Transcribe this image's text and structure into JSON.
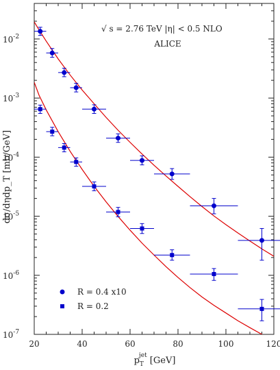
{
  "chart_data": {
    "type": "scatter",
    "title": "",
    "xlabel": "p_T^jet [GeV]",
    "xlabel_parts": {
      "p": "p",
      "sub": "T",
      "sup": "jet",
      "unit": " [GeV]"
    },
    "ylabel": "dσ/dηdp_T [mb/GeV]",
    "xlim": [
      20,
      120
    ],
    "ylim": [
      1e-07,
      0.04
    ],
    "yscale": "log",
    "x_ticks": [
      "20",
      "40",
      "60",
      "80",
      "100",
      "120"
    ],
    "y_ticks": [
      {
        "base": "10",
        "exp": "-7"
      },
      {
        "base": "10",
        "exp": "-6"
      },
      {
        "base": "10",
        "exp": "-5"
      },
      {
        "base": "10",
        "exp": "-4"
      },
      {
        "base": "10",
        "exp": "-3"
      },
      {
        "base": "10",
        "exp": "-2"
      }
    ],
    "annotations": [
      {
        "text": "√ s = 2.76 TeV |η| < 0.5  NLO"
      },
      {
        "text": "ALICE"
      }
    ],
    "legend_position": "bottom-left",
    "series": [
      {
        "name": "R = 0.4 x10",
        "marker": "circle",
        "color": "#0000cc",
        "points": [
          {
            "x": 22.5,
            "xerr": 2.5,
            "y": 0.0135,
            "ylo": 0.0115,
            "yhi": 0.0158
          },
          {
            "x": 27.5,
            "xerr": 2.5,
            "y": 0.0058,
            "ylo": 0.0049,
            "yhi": 0.0069
          },
          {
            "x": 32.5,
            "xerr": 2.5,
            "y": 0.0027,
            "ylo": 0.0023,
            "yhi": 0.0032
          },
          {
            "x": 37.5,
            "xerr": 2.5,
            "y": 0.0015,
            "ylo": 0.00127,
            "yhi": 0.00178
          },
          {
            "x": 45,
            "xerr": 5,
            "y": 0.00065,
            "ylo": 0.00055,
            "yhi": 0.00077
          },
          {
            "x": 55,
            "xerr": 5,
            "y": 0.00021,
            "ylo": 0.000178,
            "yhi": 0.000248
          },
          {
            "x": 65,
            "xerr": 5,
            "y": 8.8e-05,
            "ylo": 7.4e-05,
            "yhi": 0.000105
          },
          {
            "x": 77.5,
            "xerr": 7.5,
            "y": 5.2e-05,
            "ylo": 4.2e-05,
            "yhi": 6.4e-05
          },
          {
            "x": 95,
            "xerr": 10,
            "y": 1.5e-05,
            "ylo": 1.1e-05,
            "yhi": 2e-05
          },
          {
            "x": 115,
            "xerr": 10,
            "y": 3.9e-06,
            "ylo": 1.8e-06,
            "yhi": 6.2e-06
          }
        ],
        "curve": [
          [
            20,
            0.0195
          ],
          [
            22,
            0.0143
          ],
          [
            25,
            0.0092
          ],
          [
            30,
            0.0046
          ],
          [
            35,
            0.00245
          ],
          [
            40,
            0.00137
          ],
          [
            45,
            0.0008
          ],
          [
            50,
            0.00047
          ],
          [
            55,
            0.000285
          ],
          [
            60,
            0.000178
          ],
          [
            65,
            0.000113
          ],
          [
            70,
            7.3e-05
          ],
          [
            75,
            4.8e-05
          ],
          [
            80,
            3.2e-05
          ],
          [
            85,
            2.15e-05
          ],
          [
            90,
            1.46e-05
          ],
          [
            95,
            1.01e-05
          ],
          [
            100,
            7.2e-06
          ],
          [
            105,
            5.2e-06
          ],
          [
            110,
            3.8e-06
          ],
          [
            115,
            2.8e-06
          ],
          [
            120,
            2.1e-06
          ]
        ]
      },
      {
        "name": "R = 0.2",
        "marker": "square",
        "color": "#0000cc",
        "points": [
          {
            "x": 22.5,
            "xerr": 2.5,
            "y": 0.00065,
            "ylo": 0.00055,
            "yhi": 0.00076
          },
          {
            "x": 27.5,
            "xerr": 2.5,
            "y": 0.00027,
            "ylo": 0.00023,
            "yhi": 0.00032
          },
          {
            "x": 32.5,
            "xerr": 2.5,
            "y": 0.000145,
            "ylo": 0.000123,
            "yhi": 0.00017
          },
          {
            "x": 37.5,
            "xerr": 2.5,
            "y": 8.3e-05,
            "ylo": 7e-05,
            "yhi": 9.7e-05
          },
          {
            "x": 45,
            "xerr": 5,
            "y": 3.2e-05,
            "ylo": 2.7e-05,
            "yhi": 3.8e-05
          },
          {
            "x": 55,
            "xerr": 5,
            "y": 1.18e-05,
            "ylo": 9.8e-06,
            "yhi": 1.41e-05
          },
          {
            "x": 65,
            "xerr": 5,
            "y": 6.2e-06,
            "ylo": 5.1e-06,
            "yhi": 7.5e-06
          },
          {
            "x": 77.5,
            "xerr": 7.5,
            "y": 2.2e-06,
            "ylo": 1.8e-06,
            "yhi": 2.7e-06
          },
          {
            "x": 95,
            "xerr": 10,
            "y": 1.05e-06,
            "ylo": 8.2e-07,
            "yhi": 1.3e-06
          },
          {
            "x": 115,
            "xerr": 10,
            "y": 2.7e-07,
            "ylo": 1.7e-07,
            "yhi": 3.9e-07
          }
        ],
        "curve": [
          [
            20,
            0.00185
          ],
          [
            22,
            0.00112
          ],
          [
            25,
            0.00063
          ],
          [
            30,
            0.00027
          ],
          [
            35,
            0.000125
          ],
          [
            40,
            6.2e-05
          ],
          [
            45,
            3.2e-05
          ],
          [
            50,
            1.75e-05
          ],
          [
            55,
            9.9e-06
          ],
          [
            60,
            5.8e-06
          ],
          [
            65,
            3.5e-06
          ],
          [
            70,
            2.2e-06
          ],
          [
            75,
            1.4e-06
          ],
          [
            80,
            9.2e-07
          ],
          [
            85,
            6.2e-07
          ],
          [
            90,
            4.3e-07
          ],
          [
            95,
            3.1e-07
          ],
          [
            100,
            2.3e-07
          ],
          [
            105,
            1.7e-07
          ],
          [
            110,
            1.3e-07
          ],
          [
            115,
            1e-07
          ],
          [
            120,
            8e-08
          ]
        ]
      }
    ],
    "curve_color": "#dd0000",
    "curve_label": "NLO"
  }
}
